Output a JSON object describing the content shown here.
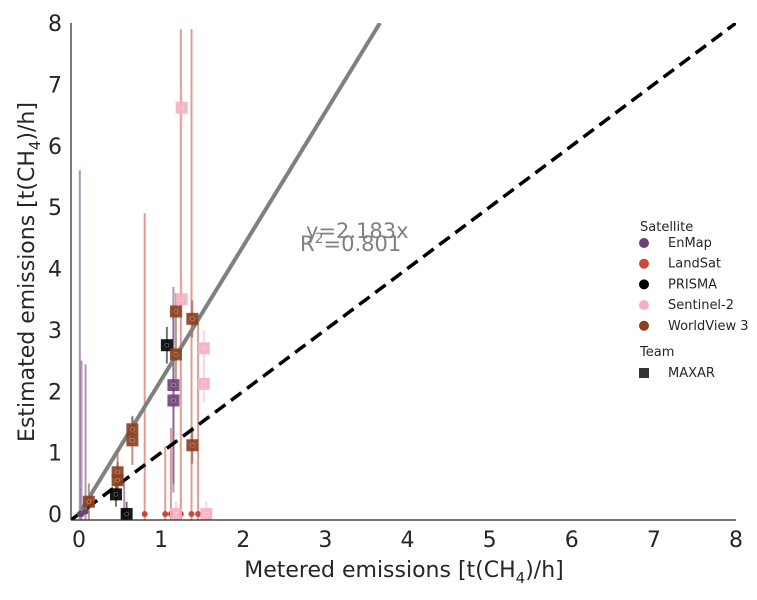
{
  "chart_data": {
    "type": "scatter",
    "title": "",
    "xlabel": "Metered emissions [t(CH4)/h]",
    "ylabel": "Estimated emissions [t(CH4)/h]",
    "xlabel_parts": {
      "pre": "Metered emissions [t(CH",
      "sub": "4",
      "post": ")/h]"
    },
    "ylabel_parts": {
      "pre": "Estimated emissions [t(CH",
      "sub": "4",
      "post": ")/h]"
    },
    "xlim": [
      -0.1,
      8
    ],
    "ylim": [
      -0.1,
      8
    ],
    "xticks": [
      "0",
      "1",
      "2",
      "3",
      "4",
      "5",
      "6",
      "7",
      "8"
    ],
    "yticks": [
      "0",
      "1",
      "2",
      "3",
      "4",
      "5",
      "6",
      "7",
      "8"
    ],
    "grid": false,
    "fit_line": {
      "slope": 2.183,
      "color": "#808080",
      "equation": "y=2.183x",
      "r2_pre": "R",
      "r2_sup": "2",
      "r2_post": "=0.801"
    },
    "parity_line": {
      "slope": 1,
      "color": "#000000",
      "style": "dashed"
    },
    "legend": {
      "placement": "center-right",
      "satellite_title": "Satellite",
      "team_title": "Team",
      "team_entries": [
        {
          "name": "MAXAR",
          "marker": "square",
          "color": "#333333"
        }
      ]
    },
    "series": [
      {
        "name": "EnMap",
        "color": "#6f3f78",
        "points": [
          {
            "x": 0.01,
            "y": 0.0,
            "err": 5.6,
            "square": false
          },
          {
            "x": 0.03,
            "y": 0.0,
            "err": 2.5,
            "square": false
          },
          {
            "x": 0.08,
            "y": 0.04,
            "err": 2.4,
            "square": false
          },
          {
            "x": 1.15,
            "y": 2.1,
            "err": 1.6,
            "square": true
          },
          {
            "x": 1.15,
            "y": 1.85,
            "err": 1.5,
            "square": true
          },
          {
            "x": 0.55,
            "y": 0.02,
            "err": 0.5,
            "square": false
          }
        ]
      },
      {
        "name": "LandSat",
        "color": "#c84a3c",
        "points": [
          {
            "x": 0.8,
            "y": 0.0,
            "err": 4.9,
            "square": false
          },
          {
            "x": 1.05,
            "y": 0.0,
            "err": 1.1,
            "square": false
          },
          {
            "x": 1.12,
            "y": 0.0,
            "err": 1.4,
            "square": false
          },
          {
            "x": 1.24,
            "y": 0.0,
            "err": 7.9,
            "square": false
          },
          {
            "x": 1.37,
            "y": 0.0,
            "err": 7.9,
            "square": false
          },
          {
            "x": 1.45,
            "y": 0.0,
            "err": 3.2,
            "square": false
          }
        ]
      },
      {
        "name": "PRISMA",
        "color": "#000000",
        "points": [
          {
            "x": 1.07,
            "y": 2.75,
            "err": 0.3,
            "square": true
          },
          {
            "x": 0.45,
            "y": 0.32,
            "err": 0.2,
            "square": true
          },
          {
            "x": 0.58,
            "y": 0.0,
            "err": 0.2,
            "square": true
          }
        ]
      },
      {
        "name": "Sentinel-2",
        "color": "#f4b0c4",
        "points": [
          {
            "x": 1.25,
            "y": 6.62,
            "err": 0.3,
            "square": true
          },
          {
            "x": 1.25,
            "y": 3.5,
            "err": 0.3,
            "square": true
          },
          {
            "x": 1.52,
            "y": 2.7,
            "err": 0.3,
            "square": true
          },
          {
            "x": 1.52,
            "y": 2.12,
            "err": 0.3,
            "square": true
          },
          {
            "x": 1.55,
            "y": 0.0,
            "err": 0.2,
            "square": true
          },
          {
            "x": 1.18,
            "y": 0.0,
            "err": 0.2,
            "square": true
          }
        ]
      },
      {
        "name": "WorldView 3",
        "color": "#8b3f1e",
        "points": [
          {
            "x": 0.12,
            "y": 0.2,
            "err": 0.3,
            "square": true
          },
          {
            "x": 0.47,
            "y": 0.68,
            "err": 0.3,
            "square": true
          },
          {
            "x": 0.47,
            "y": 0.55,
            "err": 0.3,
            "square": true
          },
          {
            "x": 0.65,
            "y": 1.38,
            "err": 0.2,
            "square": true
          },
          {
            "x": 0.65,
            "y": 1.2,
            "err": 0.4,
            "square": true
          },
          {
            "x": 1.18,
            "y": 2.6,
            "err": 0.4,
            "square": true
          },
          {
            "x": 1.18,
            "y": 3.3,
            "err": 0.3,
            "square": true
          },
          {
            "x": 1.38,
            "y": 3.18,
            "err": 0.3,
            "square": true
          },
          {
            "x": 1.38,
            "y": 1.12,
            "err": 0.3,
            "square": true
          }
        ]
      }
    ]
  }
}
